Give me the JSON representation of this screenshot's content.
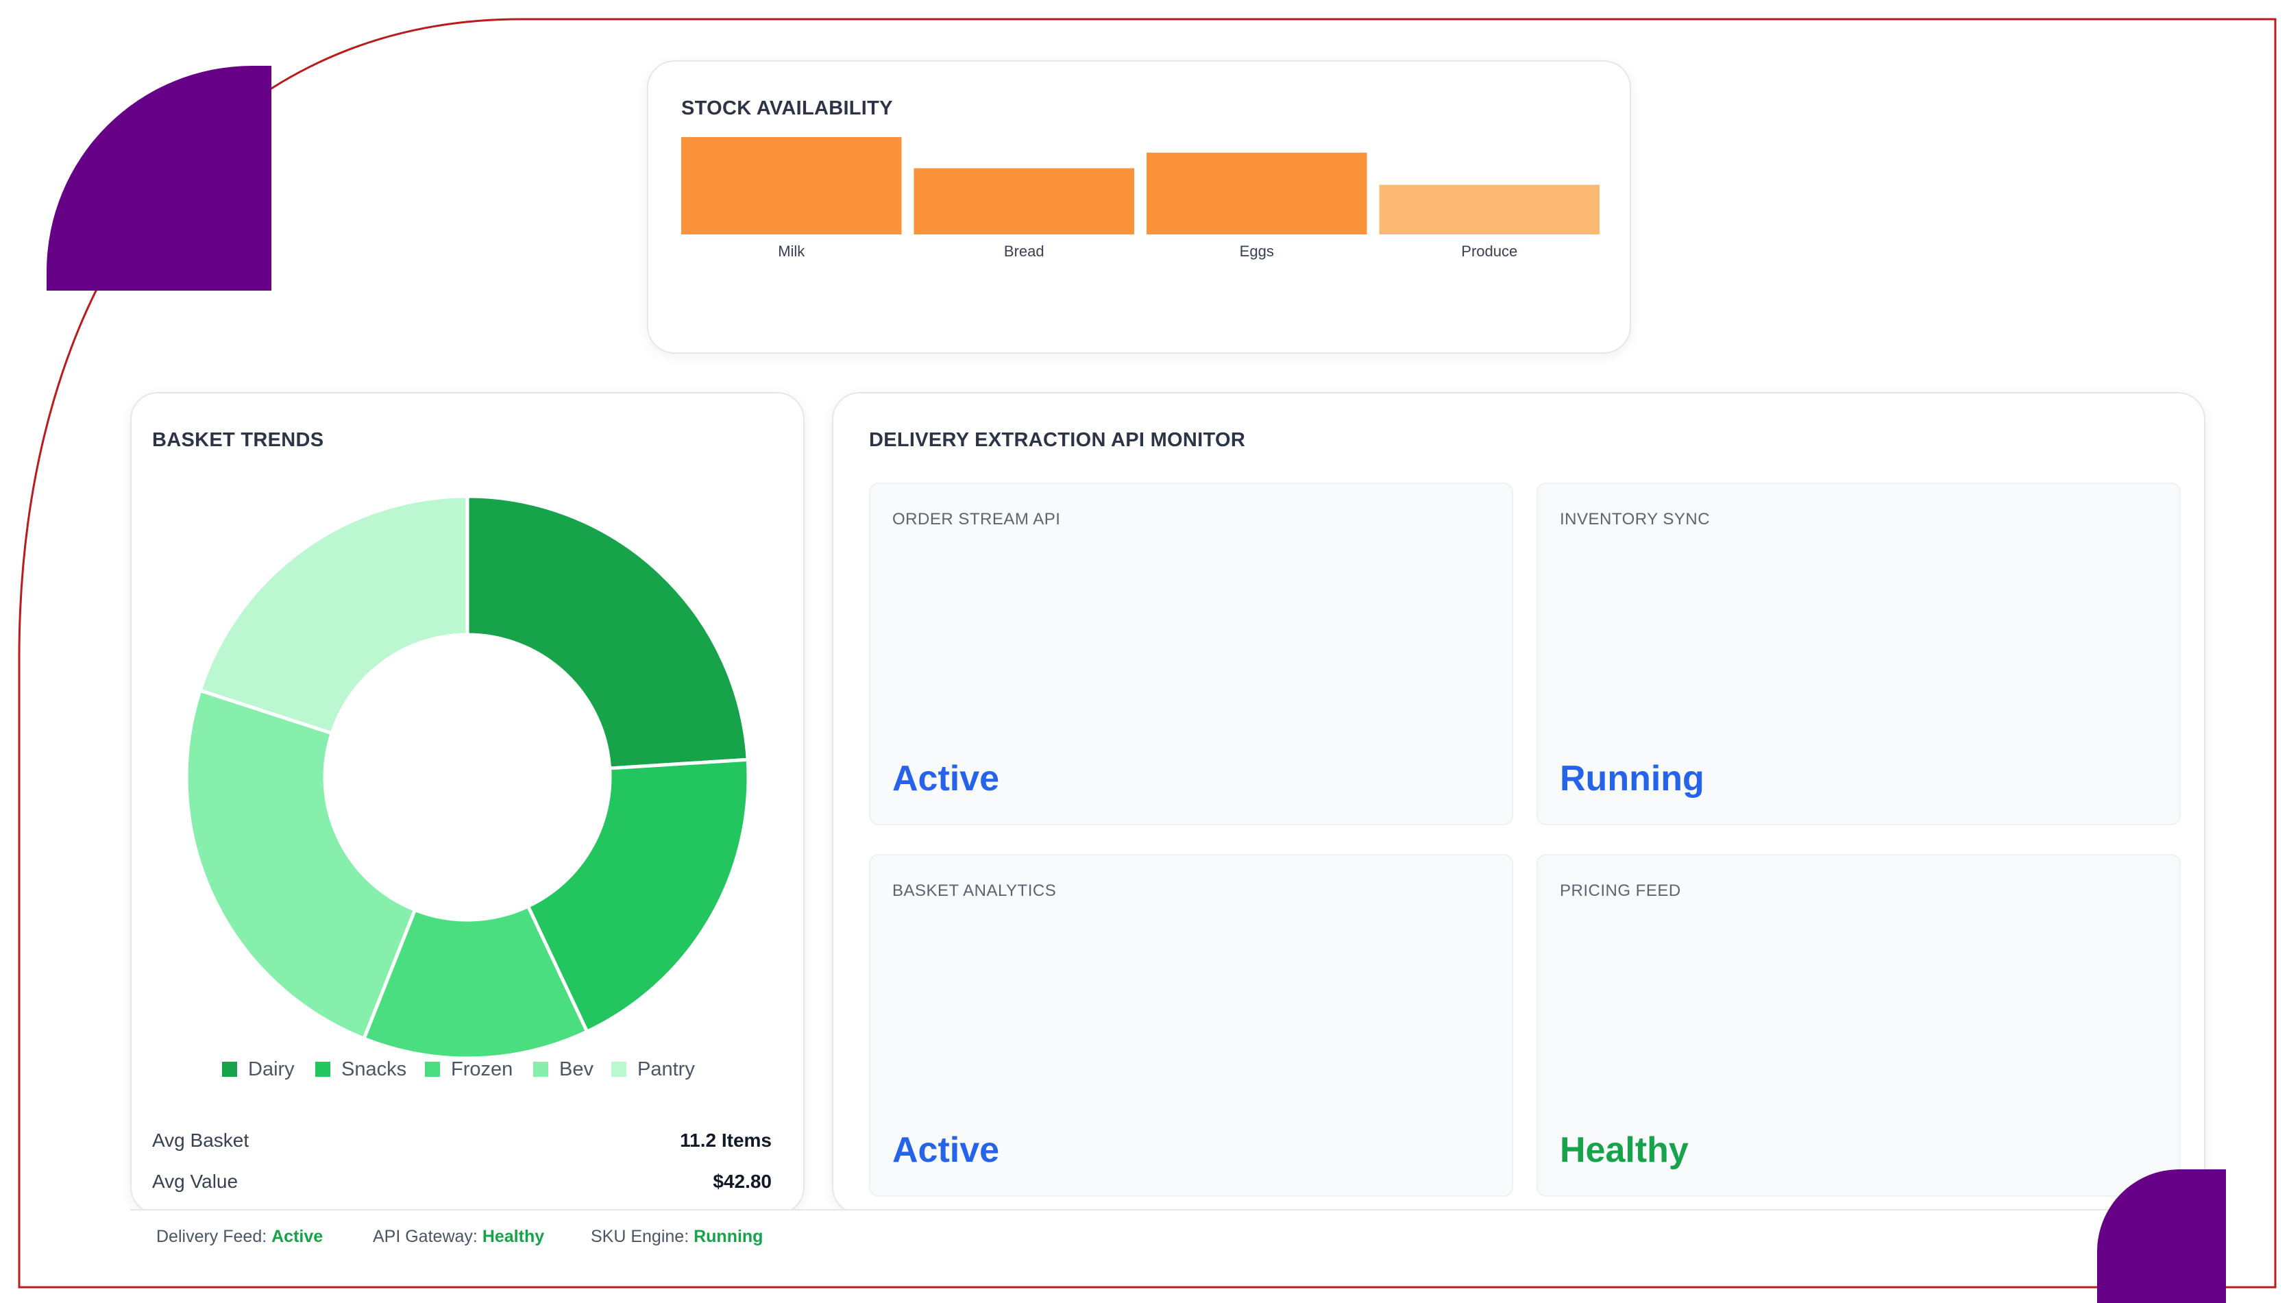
{
  "colors": {
    "accent_purple": "#660087",
    "frame_line": "#b91c1c",
    "bar_primary": "#fb923c",
    "bar_light": "#fdba74",
    "status_blue": "#2563eb",
    "status_green": "#16a34a"
  },
  "stock_availability": {
    "title": "STOCK AVAILABILITY",
    "chart_data": {
      "type": "bar",
      "categories": [
        "Milk",
        "Bread",
        "Eggs",
        "Produce"
      ],
      "values": [
        100,
        68,
        84,
        51
      ],
      "ylim": [
        0,
        100
      ],
      "grid": false,
      "colors": [
        "#fb923c",
        "#fb923c",
        "#fb923c",
        "#fdba74"
      ]
    }
  },
  "basket_trends": {
    "title": "BASKET TRENDS",
    "chart_data": {
      "type": "pie",
      "donut": true,
      "categories": [
        "Dairy",
        "Snacks",
        "Frozen",
        "Bev",
        "Pantry"
      ],
      "values": [
        24,
        19,
        13,
        24,
        20
      ],
      "colors": [
        "#16a34a",
        "#22c55e",
        "#4ade80",
        "#86efac",
        "#bbf7d0"
      ],
      "legend": "bottom"
    },
    "legend": [
      "Dairy",
      "Snacks",
      "Frozen",
      "Bev",
      "Pantry"
    ],
    "stats": [
      {
        "label": "Avg Basket",
        "value": "11.2 Items"
      },
      {
        "label": "Avg Value",
        "value": "$42.80"
      }
    ]
  },
  "monitor": {
    "title": "DELIVERY EXTRACTION API MONITOR",
    "tiles": [
      {
        "name": "ORDER STREAM API",
        "status": "Active",
        "tone": "blue"
      },
      {
        "name": "INVENTORY SYNC",
        "status": "Running",
        "tone": "blue"
      },
      {
        "name": "BASKET ANALYTICS",
        "status": "Active",
        "tone": "blue"
      },
      {
        "name": "PRICING FEED",
        "status": "Healthy",
        "tone": "green"
      }
    ]
  },
  "footer": [
    {
      "label": "Delivery Feed:",
      "value": "Active"
    },
    {
      "label": "API Gateway:",
      "value": "Healthy"
    },
    {
      "label": "SKU Engine:",
      "value": "Running"
    }
  ]
}
